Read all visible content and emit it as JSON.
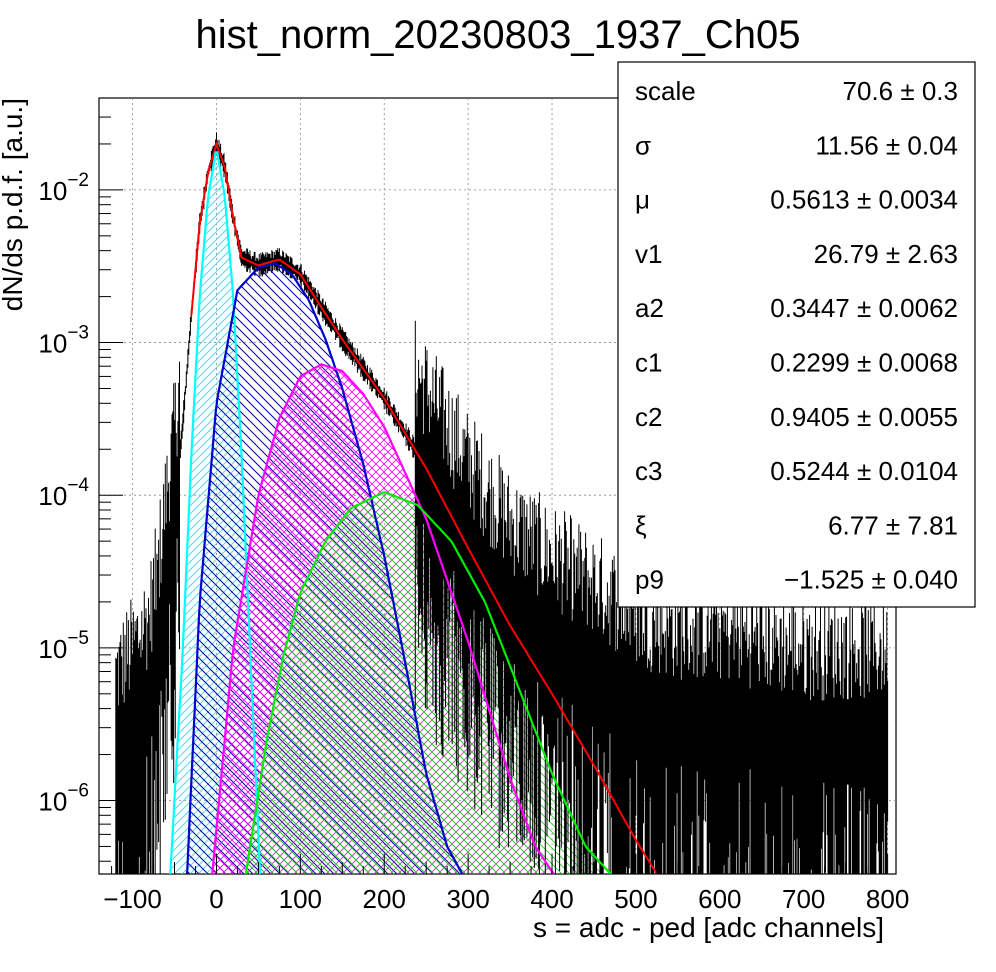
{
  "chart_data": {
    "type": "line",
    "title": "hist_norm_20230803_1937_Ch05",
    "xlabel": "s = adc - ped [adc channels]",
    "ylabel": "dN/ds p.d.f. [a.u.]",
    "xlim": [
      -140,
      810
    ],
    "ylim": [
      3.3e-07,
      0.04
    ],
    "yscale": "log",
    "grid": true,
    "xticks": [
      -100,
      0,
      100,
      200,
      300,
      400,
      500,
      600,
      700,
      800
    ],
    "xtick_labels": [
      "−100",
      "0",
      "100",
      "200",
      "300",
      "400",
      "500",
      "600",
      "700",
      "800"
    ],
    "yticks": [
      {
        "mantissa": "10",
        "exponent": "−2",
        "value": 0.01
      },
      {
        "mantissa": "10",
        "exponent": "−3",
        "value": 0.001
      },
      {
        "mantissa": "10",
        "exponent": "−4",
        "value": 0.0001
      },
      {
        "mantissa": "10",
        "exponent": "−5",
        "value": 1e-05
      },
      {
        "mantissa": "10",
        "exponent": "−6",
        "value": 1e-06
      }
    ],
    "series": [
      {
        "role": "histogram",
        "color": "#000000",
        "x": [
          -120,
          -100,
          -80,
          -70,
          -60,
          -50,
          -40,
          -30,
          -20,
          -10,
          0,
          10,
          20,
          30,
          50,
          75,
          100,
          125,
          150,
          200,
          250,
          300,
          350,
          400,
          450,
          500,
          550,
          600,
          700,
          800
        ],
        "y": [
          2e-06,
          3e-06,
          5e-06,
          1e-05,
          3e-05,
          8e-05,
          0.0003,
          0.0015,
          0.006,
          0.013,
          0.02,
          0.014,
          0.0065,
          0.0036,
          0.0032,
          0.0035,
          0.0028,
          0.0017,
          0.00105,
          0.00043,
          0.00015,
          5e-05,
          2e-05,
          1.2e-05,
          8e-06,
          5e-06,
          4e-06,
          4e-06,
          3e-06,
          3e-06
        ]
      },
      {
        "role": "total-fit",
        "color": "#ff0000",
        "x": [
          -30,
          -20,
          -10,
          0,
          10,
          20,
          30,
          50,
          75,
          100,
          125,
          150,
          200,
          250,
          300,
          350,
          400,
          450,
          500,
          525
        ],
        "y": [
          0.0015,
          0.006,
          0.013,
          0.02,
          0.014,
          0.0065,
          0.0036,
          0.0032,
          0.0035,
          0.0028,
          0.0017,
          0.00105,
          0.00043,
          0.00015,
          4.5e-05,
          1.4e-05,
          5e-06,
          1.7e-06,
          5.5e-07,
          3.3e-07
        ]
      },
      {
        "role": "pedestal-component",
        "color": "#00ffff",
        "fill": "#40e0ff",
        "x": [
          -55,
          -40,
          -30,
          -20,
          -10,
          0,
          10,
          20,
          30,
          40,
          52
        ],
        "y": [
          3.3e-07,
          1e-05,
          0.00018,
          0.002,
          0.009,
          0.019,
          0.009,
          0.002,
          0.00018,
          1e-05,
          3.3e-07
        ]
      },
      {
        "role": "component-1",
        "color": "#0000cc",
        "fill": "#0000cc",
        "x": [
          -35,
          -20,
          0,
          25,
          50,
          70,
          90,
          110,
          130,
          150,
          175,
          200,
          225,
          250,
          275,
          293
        ],
        "y": [
          3.3e-07,
          2e-05,
          0.0004,
          0.0022,
          0.0031,
          0.0033,
          0.0028,
          0.0019,
          0.00105,
          0.0005,
          0.00016,
          4e-05,
          8e-06,
          1.5e-06,
          5e-07,
          3.3e-07
        ]
      },
      {
        "role": "component-2",
        "color": "#ff00ff",
        "fill": "#ff00ff",
        "x": [
          -5,
          20,
          50,
          75,
          100,
          125,
          150,
          175,
          200,
          250,
          300,
          350,
          380,
          402
        ],
        "y": [
          3.3e-07,
          1e-05,
          0.0001,
          0.00032,
          0.0006,
          0.00072,
          0.00065,
          0.00046,
          0.00028,
          7e-05,
          1.1e-05,
          1.4e-06,
          5e-07,
          3.3e-07
        ]
      },
      {
        "role": "component-3",
        "color": "#00ee00",
        "fill": "#33cc33",
        "x": [
          35,
          60,
          80,
          100,
          130,
          160,
          200,
          240,
          280,
          320,
          360,
          400,
          440,
          470
        ],
        "y": [
          3.3e-07,
          2.5e-06,
          9e-06,
          2.3e-05,
          5e-05,
          8.2e-05,
          0.000105,
          8.6e-05,
          5e-05,
          2e-05,
          5.5e-06,
          1.5e-06,
          5e-07,
          3.3e-07
        ]
      }
    ]
  },
  "stats": {
    "rows": [
      {
        "name": "scale",
        "value": "70.6 ± 0.3"
      },
      {
        "name": "σ",
        "value": "11.56 ± 0.04"
      },
      {
        "name": "μ",
        "value": "0.5613 ± 0.0034"
      },
      {
        "name": "v1",
        "value": "26.79 ± 2.63"
      },
      {
        "name": "a2",
        "value": "0.3447 ± 0.0062"
      },
      {
        "name": "c1",
        "value": "0.2299 ± 0.0068"
      },
      {
        "name": "c2",
        "value": "0.9405 ± 0.0055"
      },
      {
        "name": "c3",
        "value": "0.5244 ± 0.0104"
      },
      {
        "name": "ξ",
        "value": "6.77 ± 7.81"
      },
      {
        "name": "p9",
        "value": "−1.525 ± 0.040"
      }
    ]
  }
}
